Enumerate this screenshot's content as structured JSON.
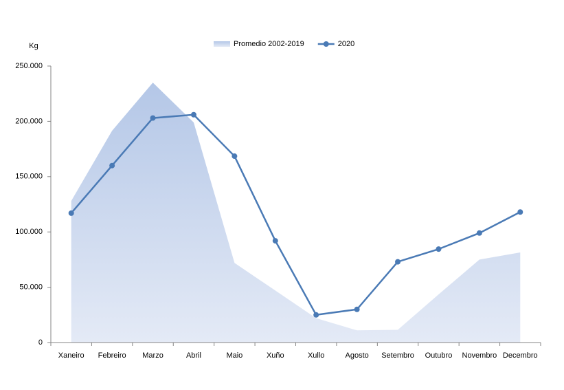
{
  "chart_data": {
    "type": "line",
    "y_label": "Kg",
    "categories": [
      "Xaneiro",
      "Febreiro",
      "Marzo",
      "Abril",
      "Maio",
      "Xuño",
      "Xullo",
      "Agosto",
      "Setembro",
      "Outubro",
      "Novembro",
      "Decembro"
    ],
    "series": [
      {
        "name": "Promedio 2002-2019",
        "type": "area",
        "color": "#b4c7e7",
        "values": [
          128000,
          191500,
          235000,
          199000,
          72000,
          47000,
          22000,
          11000,
          11500,
          43500,
          75000,
          81500
        ]
      },
      {
        "name": "2020",
        "type": "line",
        "color": "#4a7ab5",
        "values": [
          117000,
          160000,
          203000,
          206000,
          168500,
          92000,
          25000,
          30000,
          73000,
          84500,
          99000,
          118000
        ]
      }
    ],
    "ylim": [
      0,
      250000
    ],
    "yticks": [
      0,
      {
        "value": 50000,
        "label": "50.000"
      },
      {
        "value": 100000,
        "label": "100.000"
      },
      {
        "value": 150000,
        "label": "150.000"
      },
      {
        "value": 200000,
        "label": "200.000"
      },
      {
        "value": 250000,
        "label": "250.000"
      }
    ],
    "legend": "top"
  }
}
